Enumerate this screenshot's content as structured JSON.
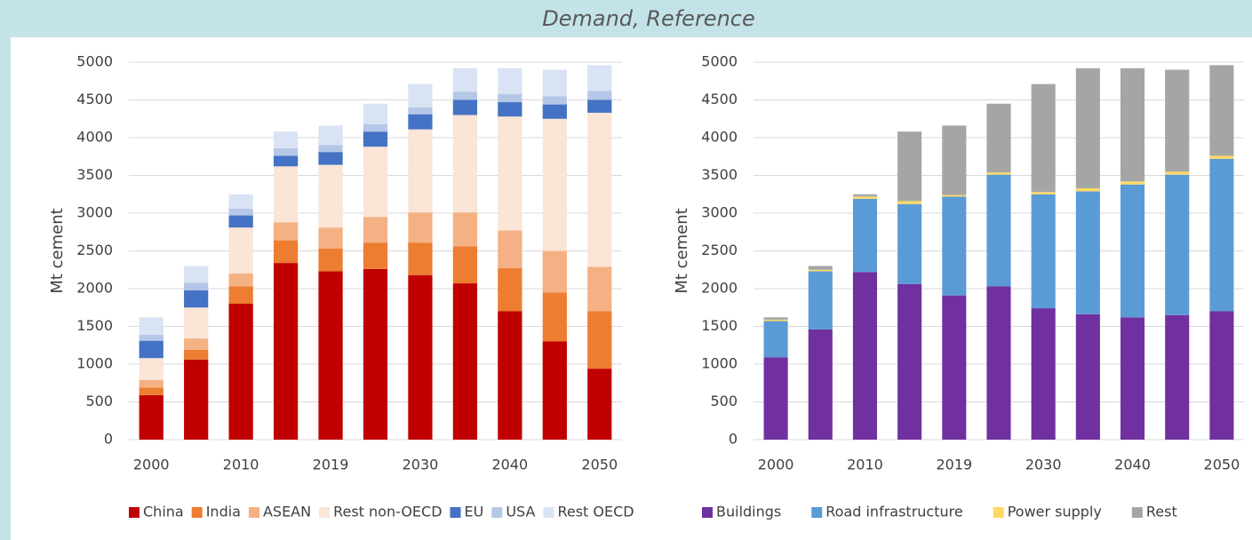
{
  "title": "Demand, Reference",
  "chart_data": [
    {
      "type": "bar",
      "stacked": true,
      "ylabel": "Mt cement",
      "categories": [
        "2000",
        null,
        "2010",
        null,
        "2019",
        null,
        "2030",
        null,
        "2040",
        null,
        "2050"
      ],
      "ylim": [
        0,
        5000
      ],
      "yticks": [
        0,
        500,
        1000,
        1500,
        2000,
        2500,
        3000,
        3500,
        4000,
        4500,
        5000
      ],
      "grid": true,
      "series": [
        {
          "name": "China",
          "color": "#c00000",
          "values": [
            590,
            1060,
            1800,
            2340,
            2230,
            2260,
            2180,
            2070,
            1700,
            1300,
            940
          ]
        },
        {
          "name": "India",
          "color": "#ed7d31",
          "values": [
            100,
            130,
            230,
            300,
            300,
            350,
            430,
            490,
            570,
            650,
            760
          ]
        },
        {
          "name": "ASEAN",
          "color": "#f4b183",
          "values": [
            100,
            150,
            170,
            240,
            280,
            340,
            400,
            450,
            500,
            550,
            590
          ]
        },
        {
          "name": "Rest non-OECD",
          "color": "#fbe5d6",
          "values": [
            290,
            410,
            610,
            740,
            830,
            930,
            1100,
            1290,
            1510,
            1750,
            2040
          ]
        },
        {
          "name": "EU",
          "color": "#4472c4",
          "values": [
            230,
            230,
            160,
            140,
            170,
            200,
            200,
            200,
            190,
            190,
            170
          ]
        },
        {
          "name": "USA",
          "color": "#b4c7e7",
          "values": [
            80,
            100,
            90,
            100,
            90,
            100,
            90,
            110,
            110,
            110,
            120
          ]
        },
        {
          "name": "Rest OECD",
          "color": "#dae3f3",
          "values": [
            230,
            220,
            190,
            220,
            260,
            270,
            310,
            310,
            340,
            350,
            340
          ]
        }
      ]
    },
    {
      "type": "bar",
      "stacked": true,
      "ylabel": "Mt cement",
      "categories": [
        "2000",
        null,
        "2010",
        null,
        "2019",
        null,
        "2030",
        null,
        "2040",
        null,
        "2050"
      ],
      "ylim": [
        0,
        5000
      ],
      "yticks": [
        0,
        500,
        1000,
        1500,
        2000,
        2500,
        3000,
        3500,
        4000,
        4500,
        5000
      ],
      "grid": true,
      "series": [
        {
          "name": "Buildings",
          "color": "#7030a0",
          "values": [
            1090,
            1460,
            2220,
            2060,
            1910,
            2030,
            1740,
            1660,
            1620,
            1650,
            1700
          ]
        },
        {
          "name": "Road infrastructure",
          "color": "#5b9bd5",
          "values": [
            480,
            770,
            970,
            1060,
            1310,
            1480,
            1510,
            1630,
            1760,
            1860,
            2020
          ]
        },
        {
          "name": "Power supply",
          "color": "#ffd966",
          "values": [
            20,
            20,
            30,
            40,
            20,
            30,
            30,
            40,
            40,
            40,
            40
          ]
        },
        {
          "name": "Rest",
          "color": "#a5a5a5",
          "values": [
            30,
            50,
            30,
            920,
            920,
            910,
            1430,
            1590,
            1500,
            1350,
            1200
          ]
        }
      ]
    }
  ]
}
